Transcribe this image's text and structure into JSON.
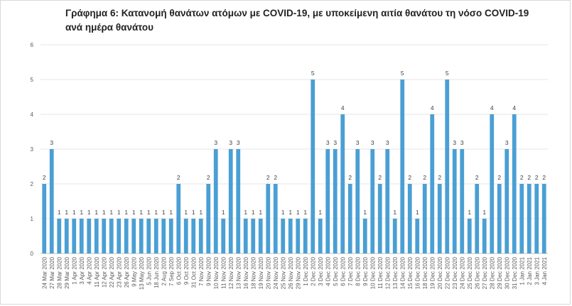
{
  "chart_data": {
    "type": "bar",
    "title": "Γράφημα 6: Κατανομή θανάτων ατόμων με COVID-19, με υποκείμενη αιτία θανάτου τη νόσο COVID-19 ανά ημέρα θανάτου",
    "xlabel": "",
    "ylabel": "",
    "ylim": [
      0,
      6
    ],
    "yticks": [
      "0",
      "1",
      "2",
      "3",
      "4",
      "5",
      "6"
    ],
    "grid": true,
    "bar_color": "#4a9fd4",
    "categories": [
      "24 Mar 2020",
      "27 Mar 2020",
      "28 Mar 2020",
      "29 Mar 2020",
      "1 Apr 2020",
      "3 Apr 2020",
      "4 Apr 2020",
      "11 Apr 2020",
      "12 Apr 2020",
      "22 Apr 2020",
      "23 Apr 2020",
      "26 Apr 2020",
      "9 May 2020",
      "13 May 2020",
      "5 Jun 2020",
      "18 Jun 2020",
      "2 Aug 2020",
      "7 Sep 2020",
      "6 Oct 2020",
      "9 Oct 2020",
      "31 Oct 2020",
      "7 Nov 2020",
      "9 Nov 2020",
      "10 Nov 2020",
      "11 Nov 2020",
      "12 Nov 2020",
      "13 Nov 2020",
      "16 Nov 2020",
      "18 Nov 2020",
      "19 Nov 2020",
      "20 Nov 2020",
      "24 Nov 2020",
      "25 Nov 2020",
      "26 Nov 2020",
      "29 Nov 2020",
      "1 Dec 2020",
      "2 Dec 2020",
      "3 Dec 2020",
      "4 Dec 2020",
      "5 Dec 2020",
      "6 Dec 2020",
      "7 Dec 2020",
      "8 Dec 2020",
      "9 Dec 2020",
      "10 Dec 2020",
      "11 Dec 2020",
      "12 Dec 2020",
      "13 Dec 2020",
      "14 Dec 2020",
      "15 Dec 2020",
      "16 Dec 2020",
      "18 Dec 2020",
      "19 Dec 2020",
      "20 Dec 2020",
      "22 Dec 2020",
      "23 Dec 2020",
      "24 Dec 2020",
      "25 Dec 2020",
      "26 Dec 2020",
      "27 Dec 2020",
      "28 Dec 2020",
      "29 Dec 2020",
      "30 Dec 2020",
      "31 Dec 2020",
      "1 Jan 2021",
      "2 Jan 2021",
      "3 Jan 2021",
      "4 Jan 2021"
    ],
    "values": [
      2,
      3,
      1,
      1,
      1,
      1,
      1,
      1,
      1,
      1,
      1,
      1,
      1,
      1,
      1,
      1,
      1,
      1,
      2,
      1,
      1,
      1,
      2,
      3,
      1,
      3,
      3,
      1,
      1,
      1,
      2,
      2,
      1,
      1,
      1,
      1,
      5,
      1,
      3,
      3,
      4,
      2,
      3,
      1,
      3,
      2,
      3,
      1,
      5,
      2,
      1,
      2,
      4,
      2,
      5,
      3,
      3,
      1,
      2,
      1,
      4,
      2,
      3,
      4,
      2,
      2,
      2,
      2
    ]
  }
}
